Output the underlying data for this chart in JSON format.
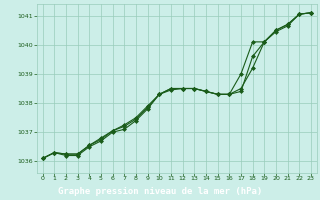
{
  "xlabel": "Graphe pression niveau de la mer (hPa)",
  "xlim": [
    -0.5,
    23.5
  ],
  "ylim": [
    1035.6,
    1041.4
  ],
  "yticks": [
    1036,
    1037,
    1038,
    1039,
    1040,
    1041
  ],
  "xticks": [
    0,
    1,
    2,
    3,
    4,
    5,
    6,
    7,
    8,
    9,
    10,
    11,
    12,
    13,
    14,
    15,
    16,
    17,
    18,
    19,
    20,
    21,
    22,
    23
  ],
  "background_color": "#cceee8",
  "grid_color": "#99ccbb",
  "line_color": "#1a5c1a",
  "xlabel_bg": "#336633",
  "xlabel_fg": "#ffffff",
  "lines": [
    [
      1036.1,
      1036.3,
      1036.2,
      1036.2,
      1036.5,
      1036.7,
      1037.0,
      1037.1,
      1037.4,
      1037.8,
      1038.3,
      1038.45,
      1038.5,
      1038.5,
      1038.4,
      1038.3,
      1038.3,
      1038.4,
      1039.6,
      1040.1,
      1040.45,
      1040.65,
      1041.05,
      1041.1
    ],
    [
      1036.1,
      1036.3,
      1036.25,
      1036.25,
      1036.55,
      1036.75,
      1037.05,
      1037.2,
      1037.45,
      1037.85,
      1038.3,
      1038.5,
      1038.5,
      1038.5,
      1038.4,
      1038.3,
      1038.3,
      1038.5,
      1039.2,
      1040.1,
      1040.5,
      1040.7,
      1041.05,
      1041.1
    ],
    [
      1036.1,
      1036.3,
      1036.25,
      1036.25,
      1036.55,
      1036.8,
      1037.05,
      1037.25,
      1037.5,
      1037.9,
      1038.3,
      1038.5,
      1038.5,
      1038.5,
      1038.4,
      1038.3,
      1038.3,
      1039.0,
      1040.1,
      1040.1,
      1040.5,
      1040.7,
      1041.05,
      1041.1
    ]
  ]
}
